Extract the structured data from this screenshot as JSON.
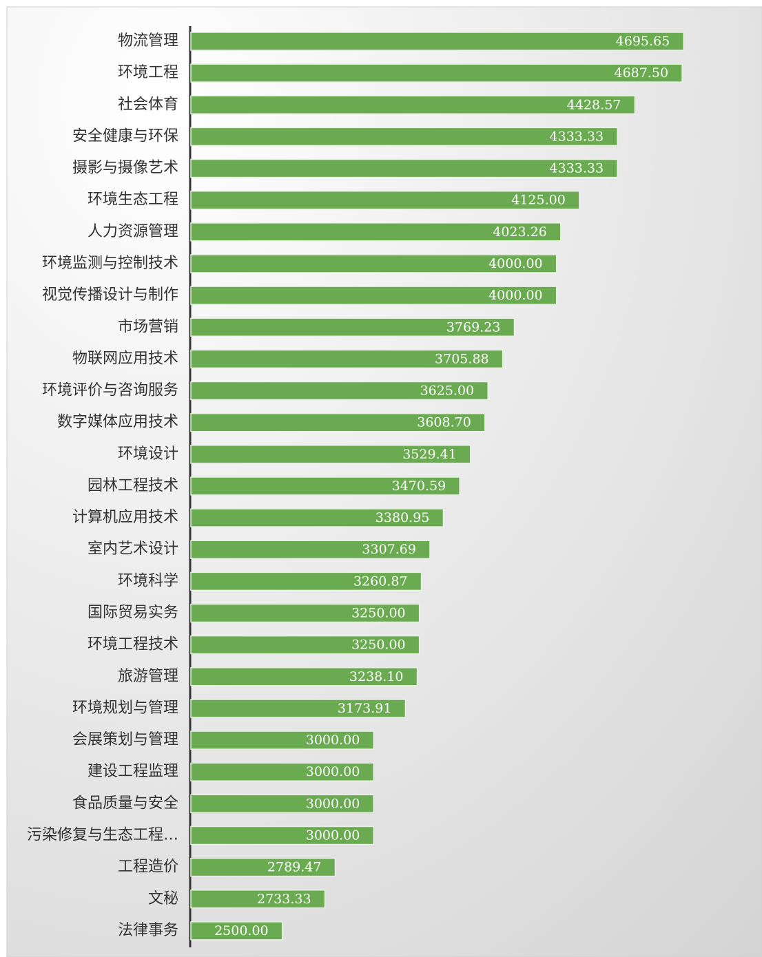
{
  "chart_data": {
    "type": "bar",
    "orientation": "horizontal",
    "categories": [
      "物流管理",
      "环境工程",
      "社会体育",
      "安全健康与环保",
      "摄影与摄像艺术",
      "环境生态工程",
      "人力资源管理",
      "环境监测与控制技术",
      "视觉传播设计与制作",
      "市场营销",
      "物联网应用技术",
      "环境评价与咨询服务",
      "数字媒体应用技术",
      "环境设计",
      "园林工程技术",
      "计算机应用技术",
      "室内艺术设计",
      "环境科学",
      "国际贸易实务",
      "环境工程技术",
      "旅游管理",
      "环境规划与管理",
      "会展策划与管理",
      "建设工程监理",
      "食品质量与安全",
      "污染修复与生态工程…",
      "工程造价",
      "文秘",
      "法律事务"
    ],
    "values": [
      4695.65,
      4687.5,
      4428.57,
      4333.33,
      4333.33,
      4125,
      4023.26,
      4000,
      4000,
      3769.23,
      3705.88,
      3625,
      3608.7,
      3529.41,
      3470.59,
      3380.95,
      3307.69,
      3260.87,
      3250,
      3250,
      3238.1,
      3173.91,
      3000,
      3000,
      3000,
      3000,
      2789.47,
      2733.33,
      2500
    ],
    "value_labels": [
      "4695.65",
      "4687.50",
      "4428.57",
      "4333.33",
      "4333.33",
      "4125.00",
      "4023.26",
      "4000.00",
      "4000.00",
      "3769.23",
      "3705.88",
      "3625.00",
      "3608.70",
      "3529.41",
      "3470.59",
      "3380.95",
      "3307.69",
      "3260.87",
      "3250.00",
      "3250.00",
      "3238.10",
      "3173.91",
      "3000.00",
      "3000.00",
      "3000.00",
      "3000.00",
      "2789.47",
      "2733.33",
      "2500.00"
    ],
    "color": "#6aaa50",
    "xlim": [
      2000,
      5000
    ]
  }
}
